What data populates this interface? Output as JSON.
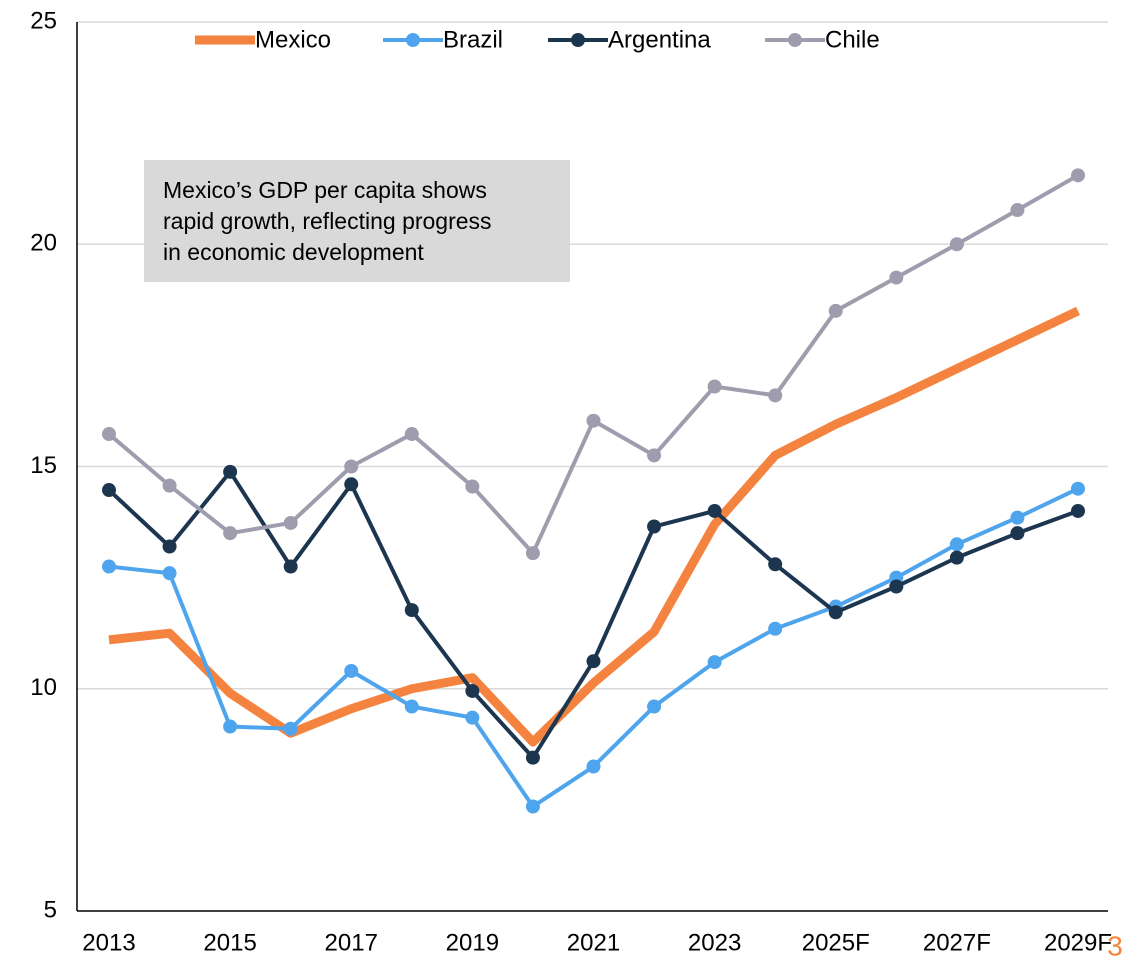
{
  "chart_data": {
    "type": "line",
    "categories": [
      "2013",
      null,
      "2015",
      null,
      "2017",
      null,
      "2019",
      null,
      "2021",
      null,
      "2023",
      null,
      "2025F",
      null,
      "2027F",
      null,
      "2029F"
    ],
    "series": [
      {
        "name": "Mexico",
        "color": "#f4833f",
        "width": 9,
        "markers": false,
        "values": [
          11.1,
          11.25,
          9.9,
          9.0,
          9.55,
          10.0,
          10.25,
          8.8,
          10.13,
          11.28,
          13.7,
          15.25,
          15.95,
          16.55,
          17.2,
          17.85,
          18.5
        ]
      },
      {
        "name": "Brazil",
        "color": "#4ea5ee",
        "width": 4,
        "markers": true,
        "values": [
          12.75,
          12.6,
          9.15,
          9.1,
          10.4,
          9.6,
          9.35,
          7.35,
          8.25,
          9.6,
          10.6,
          11.35,
          11.85,
          12.5,
          13.25,
          13.85,
          14.5
        ]
      },
      {
        "name": "Argentina",
        "color": "#1c3650",
        "width": 4,
        "markers": true,
        "values": [
          14.47,
          13.2,
          14.88,
          12.75,
          14.6,
          11.77,
          9.95,
          8.45,
          10.62,
          13.65,
          14.0,
          12.8,
          11.72,
          12.3,
          12.95,
          13.5,
          14.0
        ]
      },
      {
        "name": "Chile",
        "color": "#9e9dae",
        "width": 4,
        "markers": true,
        "values": [
          15.73,
          14.57,
          13.5,
          13.73,
          15.0,
          15.73,
          14.55,
          13.05,
          16.03,
          15.25,
          16.8,
          16.6,
          18.5,
          19.25,
          20.0,
          20.77,
          21.55
        ]
      }
    ],
    "ylim": [
      5,
      25
    ],
    "yticks": [
      5,
      10,
      15,
      20,
      25
    ],
    "grid": true,
    "legend": "top",
    "annotation": [
      "Mexico’s GDP per capita shows",
      "rapid growth, reflecting progress",
      "in economic development"
    ]
  },
  "page_number": "3"
}
